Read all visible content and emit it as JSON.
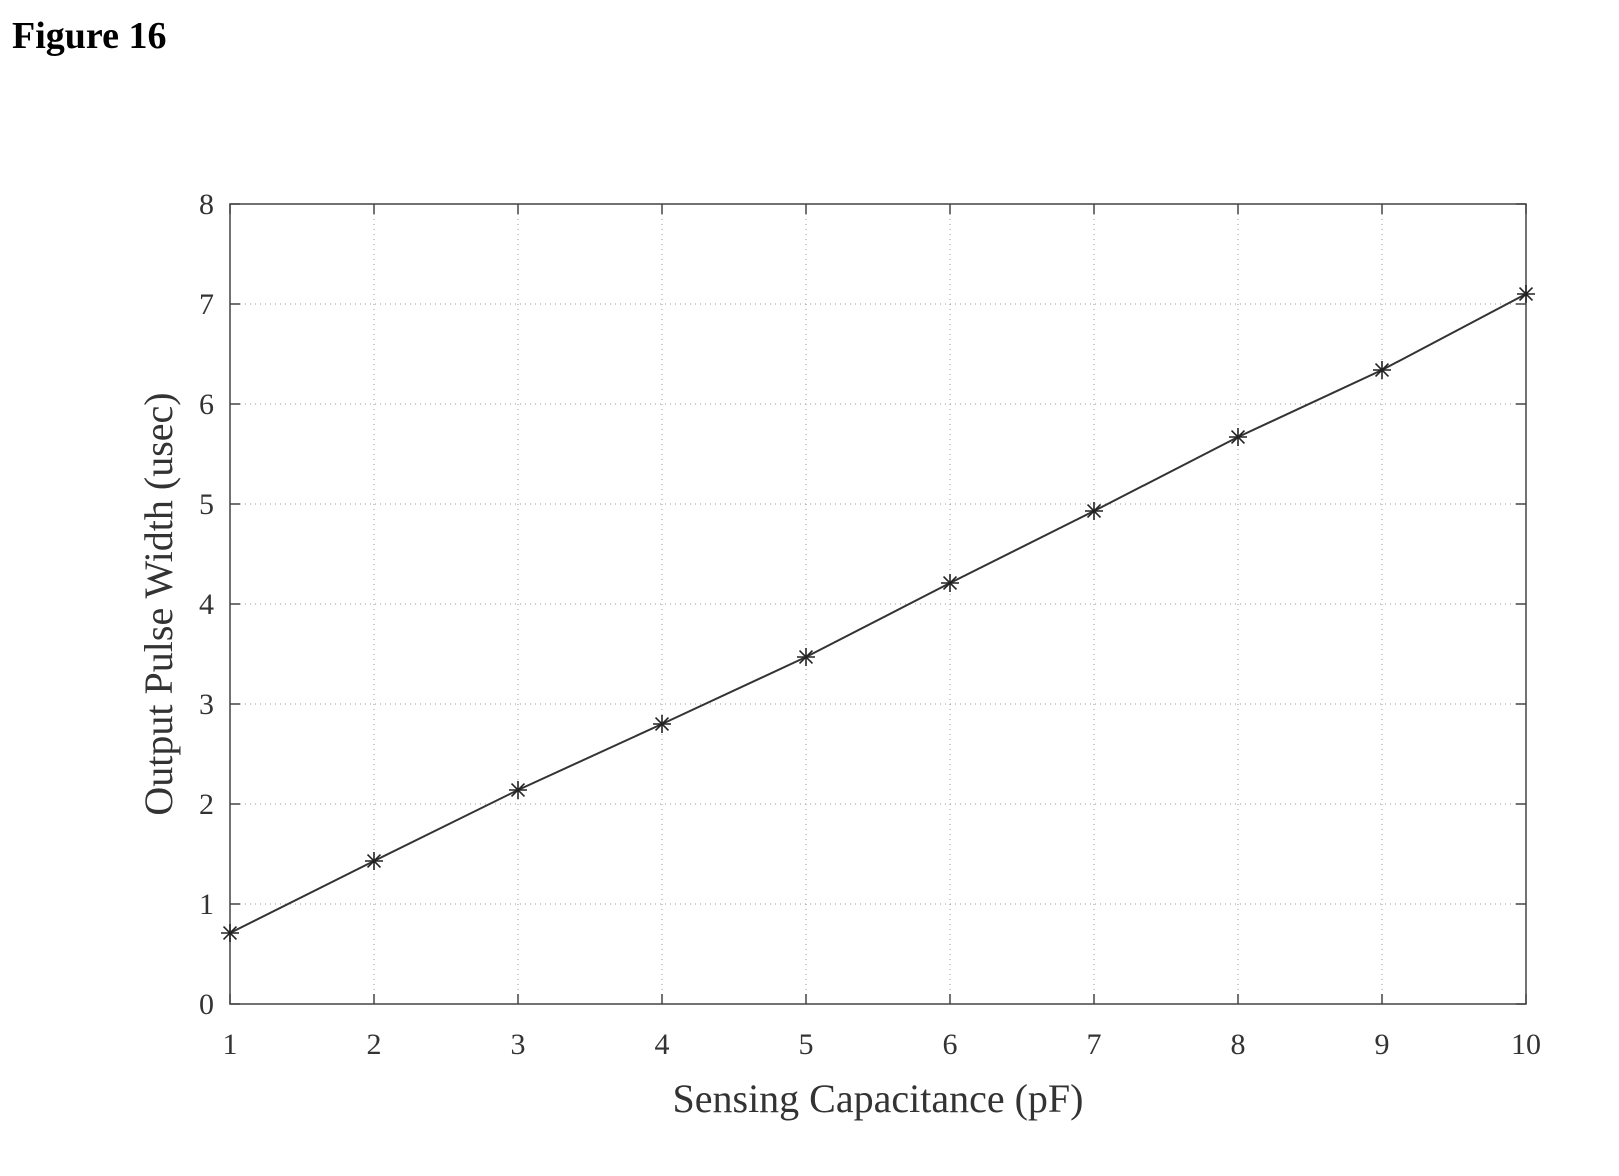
{
  "figure_label": "Figure 16",
  "chart_data": {
    "type": "line",
    "title": "",
    "xlabel": "Sensing Capacitance (pF)",
    "ylabel": "Output Pulse Width (usec)",
    "xlim": [
      1,
      10
    ],
    "ylim": [
      0,
      8
    ],
    "xticks": [
      1,
      2,
      3,
      4,
      5,
      6,
      7,
      8,
      9,
      10
    ],
    "yticks": [
      0,
      1,
      2,
      3,
      4,
      5,
      6,
      7,
      8
    ],
    "grid": true,
    "marker": "asterisk",
    "series": [
      {
        "x": [
          1,
          2,
          3,
          4,
          5,
          6,
          7,
          8,
          9,
          10
        ],
        "y": [
          0.71,
          1.43,
          2.14,
          2.8,
          3.47,
          4.21,
          4.93,
          5.67,
          6.34,
          7.1
        ]
      }
    ]
  }
}
